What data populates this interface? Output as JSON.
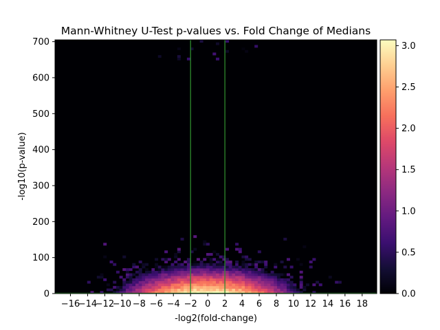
{
  "chart_data": {
    "type": "heatmap",
    "title": "Mann-Whitney U-Test p-values vs. Fold Change of Medians",
    "xlabel": "-log2(fold-change)",
    "ylabel": "-log10(p-value)",
    "xlim": [
      -17.8,
      19.7
    ],
    "ylim": [
      0,
      705
    ],
    "xticks": [
      -16,
      -14,
      -12,
      -10,
      -8,
      -6,
      -4,
      -2,
      0,
      2,
      4,
      6,
      8,
      10,
      12,
      14,
      16,
      18
    ],
    "xtick_labels": [
      "−16",
      "−14",
      "−12",
      "−10",
      "−8",
      "−6",
      "−4",
      "−2",
      "0",
      "2",
      "4",
      "6",
      "8",
      "10",
      "12",
      "14",
      "16",
      "18"
    ],
    "yticks": [
      0,
      100,
      200,
      300,
      400,
      500,
      600,
      700
    ],
    "ytick_labels": [
      "0",
      "100",
      "200",
      "300",
      "400",
      "500",
      "600",
      "700"
    ],
    "colorbar": {
      "cmap": "magma",
      "scale": "log10(count)",
      "range": [
        0,
        3.07
      ],
      "ticks": [
        0.0,
        0.5,
        1.0,
        1.5,
        2.0,
        2.5,
        3.0
      ],
      "tick_labels": [
        "0.0",
        "0.5",
        "1.0",
        "1.5",
        "2.0",
        "2.5",
        "3.0"
      ]
    },
    "grid": false,
    "threshold_lines": {
      "axis": "x",
      "values": [
        -2,
        2
      ],
      "color": "#2e8b2e"
    },
    "bins": {
      "x": 100,
      "y": 100
    },
    "density_description": {
      "peak_x": 0,
      "peak_y_range": [
        0,
        40
      ],
      "peak_value": 3.07,
      "x_spread_at_base": [
        -16,
        15
      ],
      "max_y_observed": 705
    }
  }
}
